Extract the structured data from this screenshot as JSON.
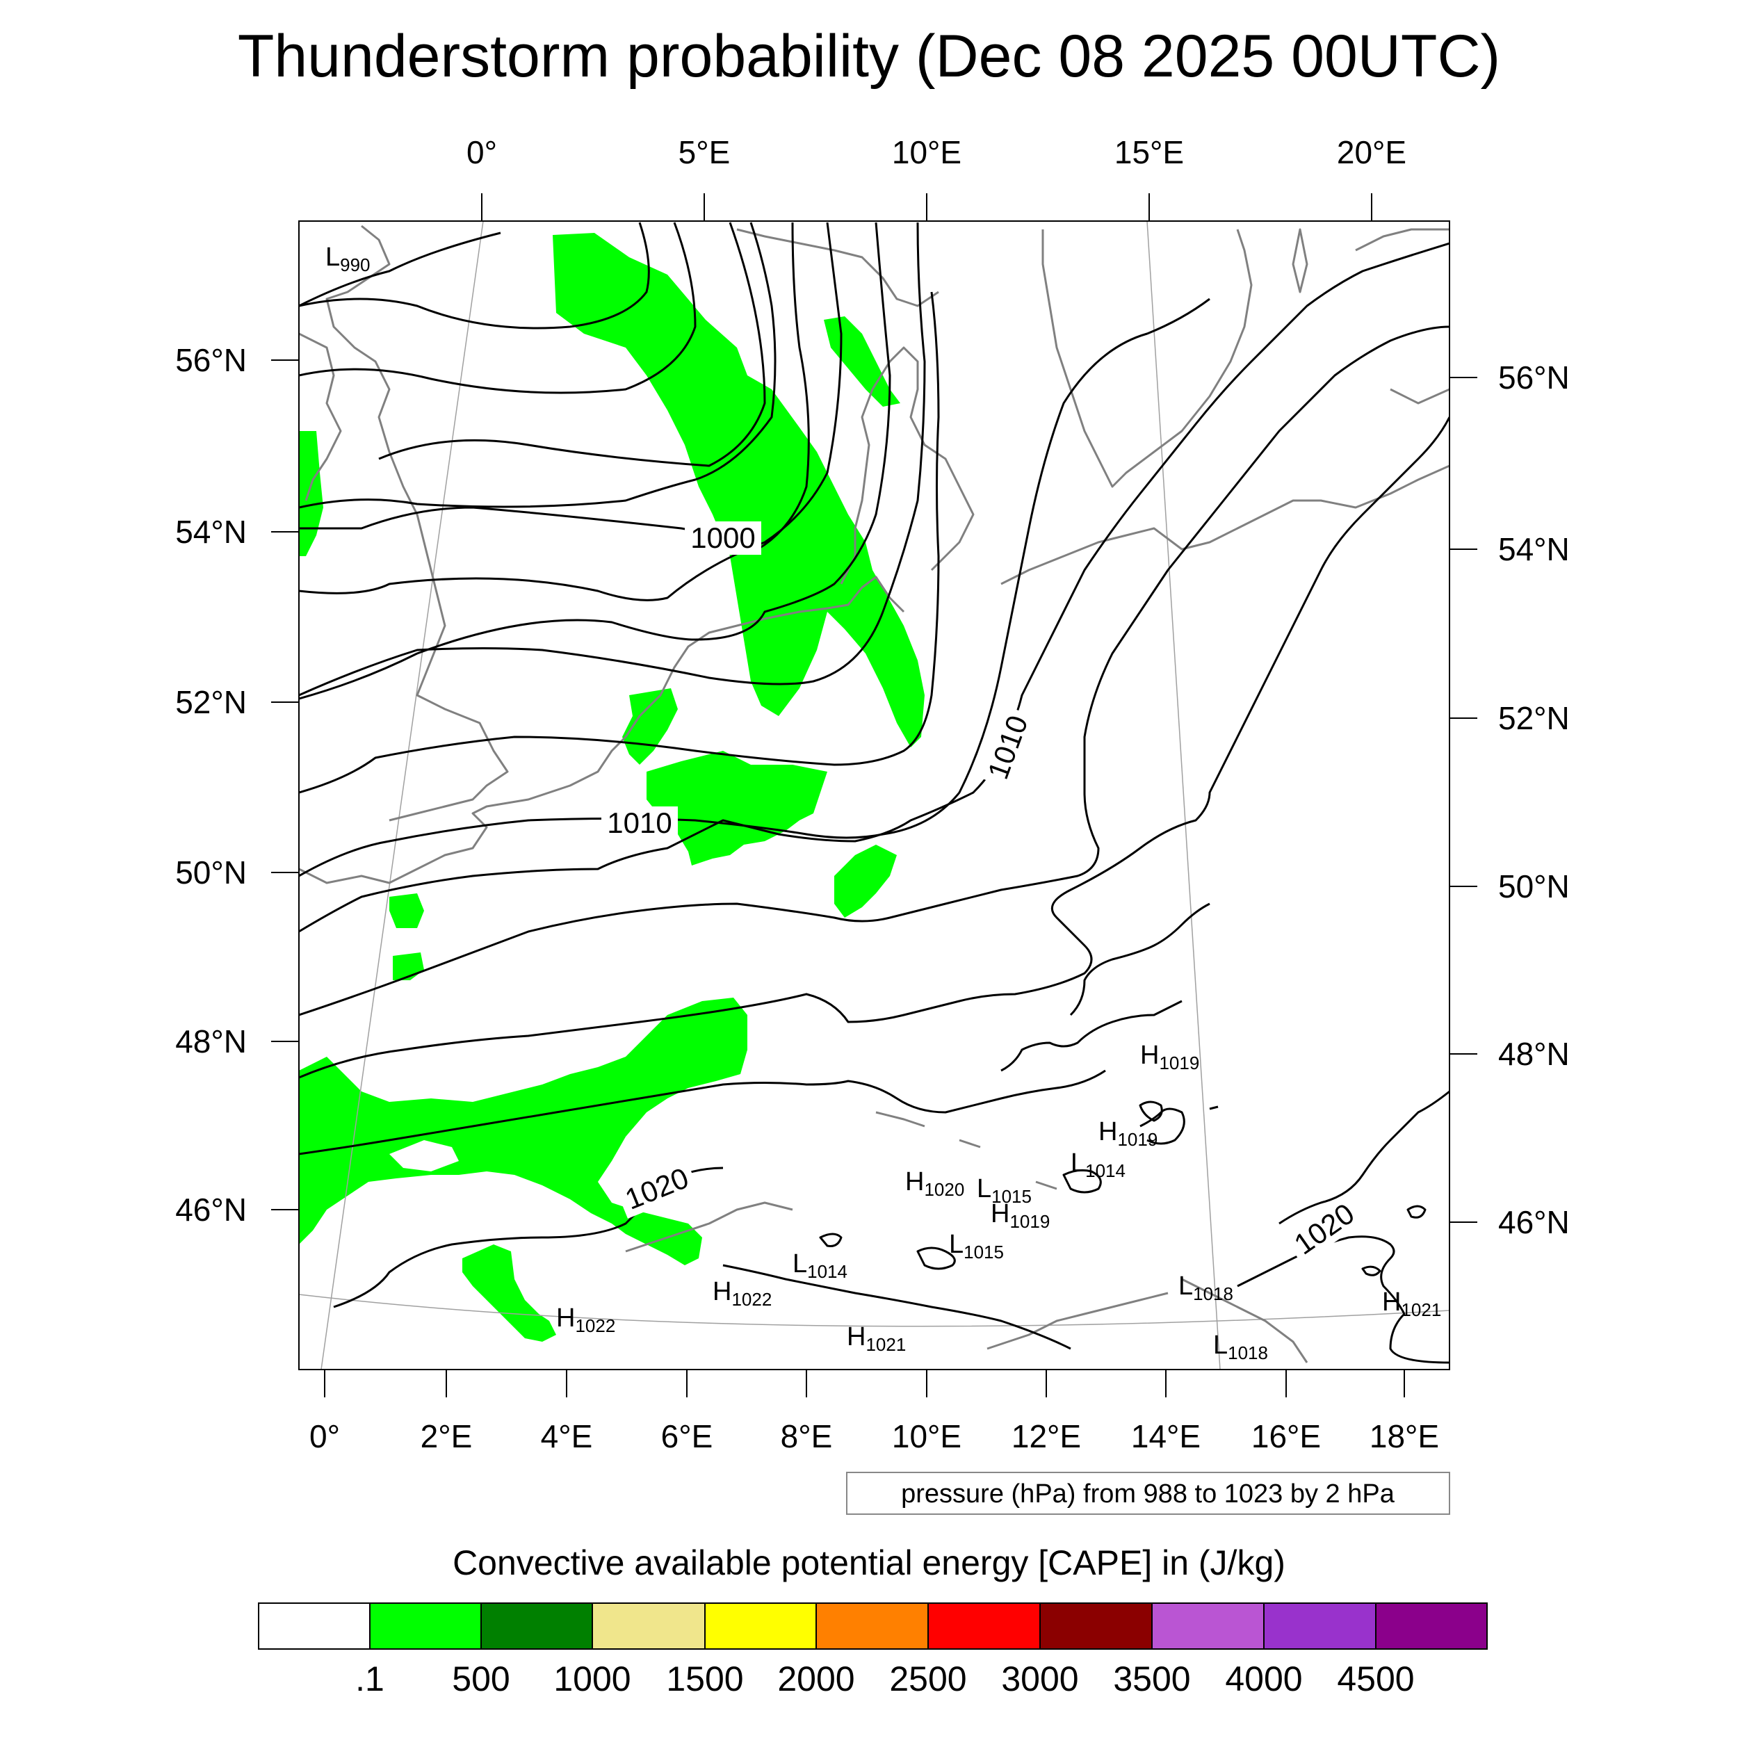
{
  "title": "Thunderstorm probability (Dec 08 2025 00UTC)",
  "top_lon_labels": [
    "0°",
    "5°E",
    "10°E",
    "15°E",
    "20°E"
  ],
  "left_lat_labels": [
    "56°N",
    "54°N",
    "52°N",
    "50°N",
    "48°N",
    "46°N"
  ],
  "right_lat_labels": [
    "56°N",
    "54°N",
    "52°N",
    "50°N",
    "48°N",
    "46°N"
  ],
  "bottom_lon_labels": [
    "0°",
    "2°E",
    "4°E",
    "6°E",
    "8°E",
    "10°E",
    "12°E",
    "14°E",
    "16°E",
    "18°E"
  ],
  "isobar_labels": [
    "1000",
    "1010",
    "1010",
    "1020",
    "1020"
  ],
  "pressure_centers": [
    {
      "type": "L",
      "value": "990"
    },
    {
      "type": "H",
      "value": "1019"
    },
    {
      "type": "H",
      "value": "1019"
    },
    {
      "type": "L",
      "value": "1014"
    },
    {
      "type": "H",
      "value": "1020"
    },
    {
      "type": "L",
      "value": "1015"
    },
    {
      "type": "H",
      "value": "1019"
    },
    {
      "type": "L",
      "value": "1015"
    },
    {
      "type": "L",
      "value": "1014"
    },
    {
      "type": "H",
      "value": "1022"
    },
    {
      "type": "H",
      "value": "1022"
    },
    {
      "type": "H",
      "value": "1021"
    },
    {
      "type": "L",
      "value": "1018"
    },
    {
      "type": "L",
      "value": "1018"
    },
    {
      "type": "H",
      "value": "1021"
    }
  ],
  "contour_note": "pressure (hPa) from 988 to 1023 by 2 hPa",
  "colorbar": {
    "title": "Convective available potential energy [CAPE] in (J/kg)",
    "colors": [
      "#ffffff",
      "#00ff00",
      "#008000",
      "#f0e68c",
      "#ffff00",
      "#ff8000",
      "#ff0000",
      "#8b0000",
      "#ba55d3",
      "#9932cc",
      "#8b008b"
    ],
    "labels": [
      ".1",
      "500",
      "1000",
      "1500",
      "2000",
      "2500",
      "3000",
      "3500",
      "4000",
      "4500"
    ]
  },
  "colors": {
    "cape_fill": "#00ff00",
    "isobar": "#000000",
    "coastline": "#808080",
    "grid": "#a0a0a0"
  }
}
